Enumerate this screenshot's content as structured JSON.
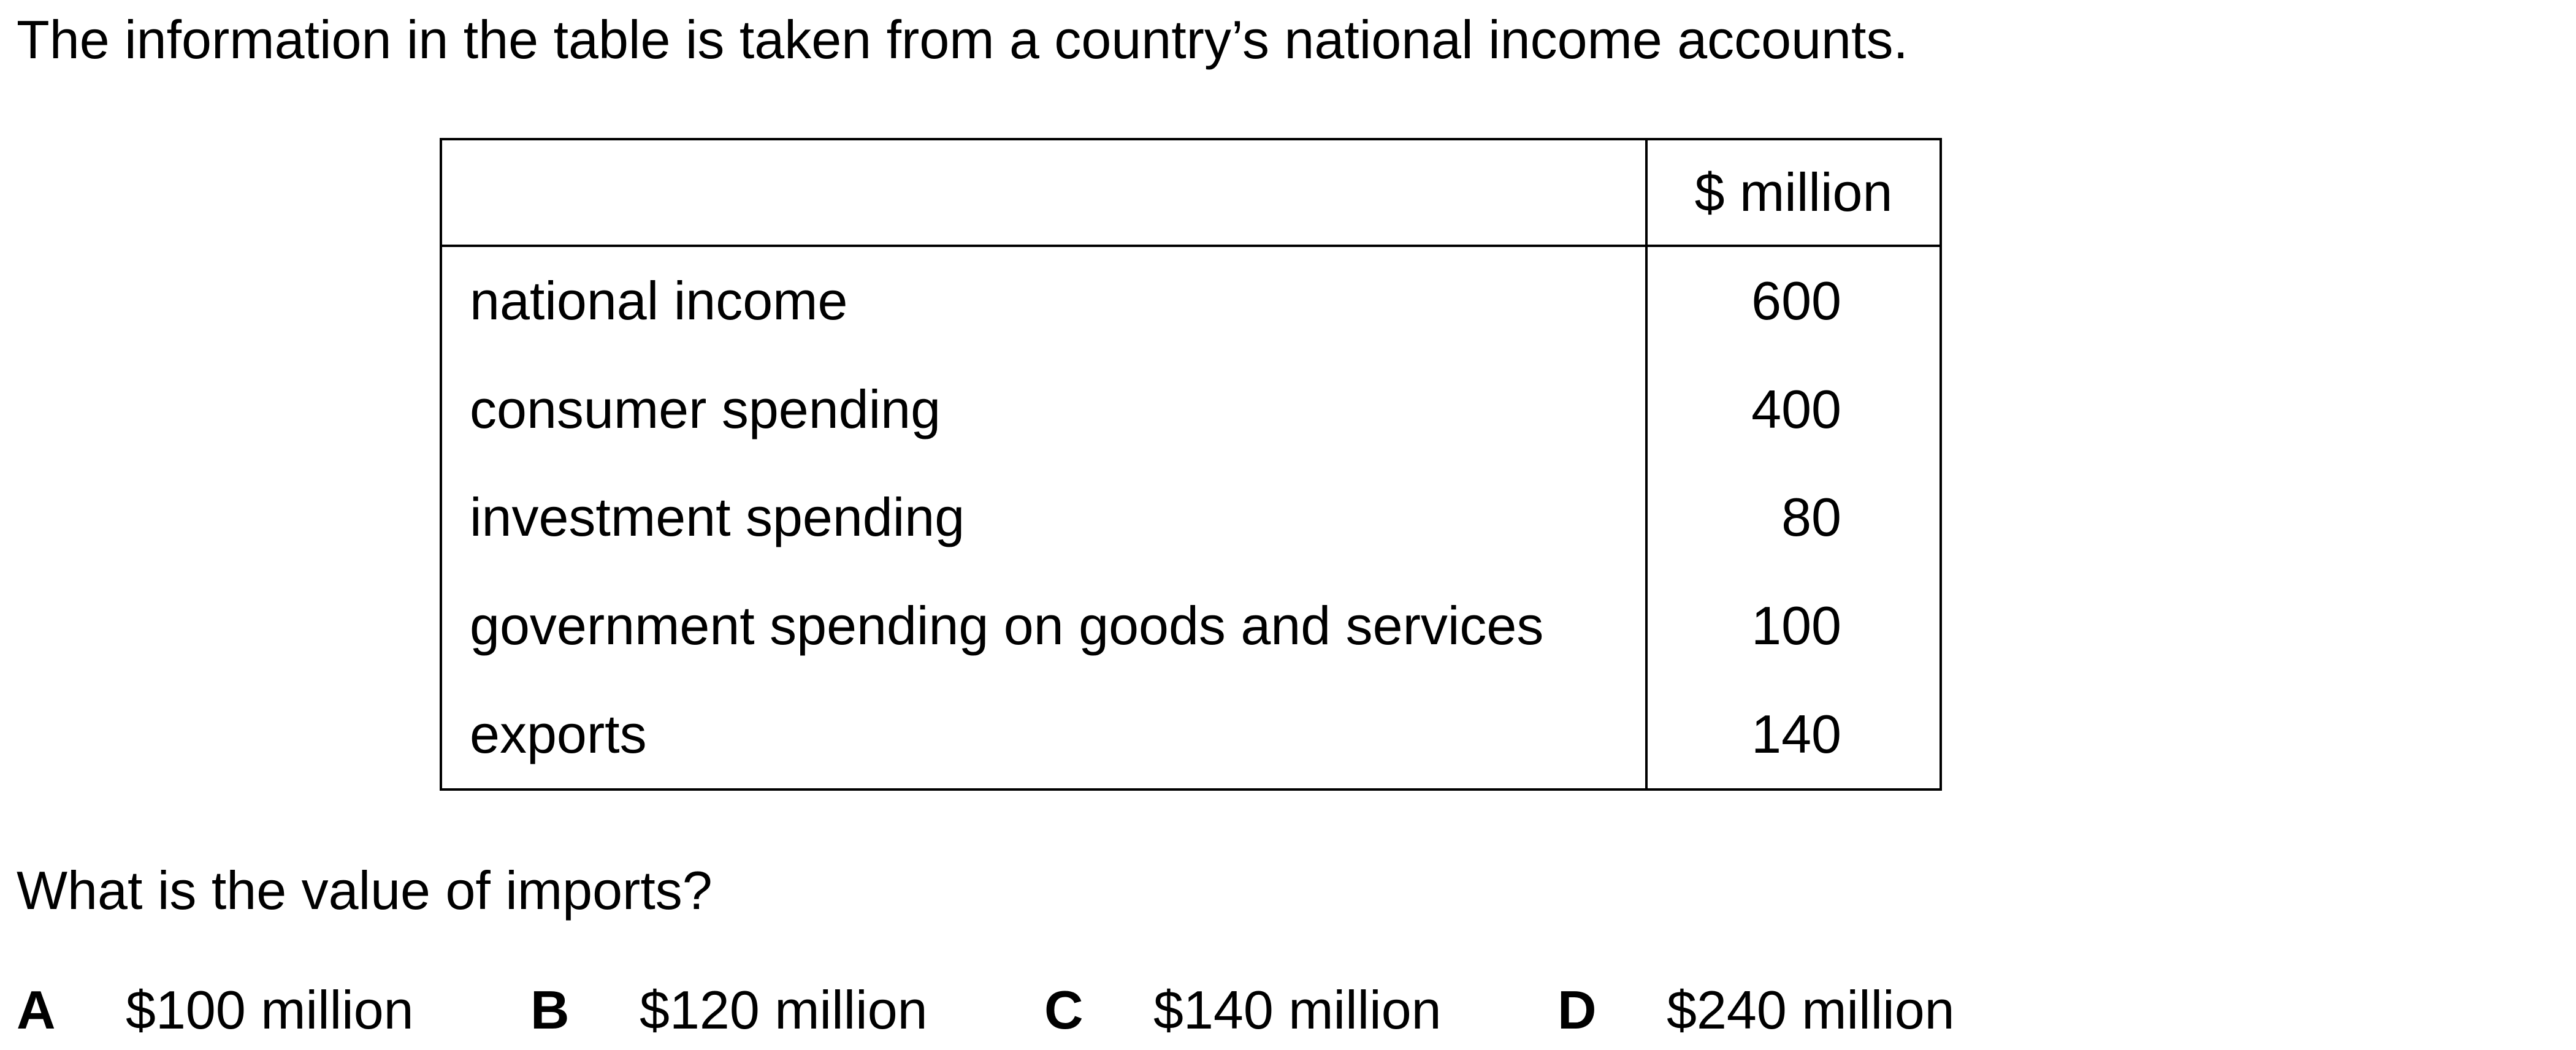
{
  "intro_text": "The information in the table is taken from a country’s national income accounts.",
  "table": {
    "header": {
      "label": "",
      "unit": "$ million"
    },
    "rows": [
      {
        "label": "national income",
        "value": "600"
      },
      {
        "label": "consumer spending",
        "value": "400"
      },
      {
        "label": "investment spending",
        "value": "80"
      },
      {
        "label": "government spending on goods and services",
        "value": "100"
      },
      {
        "label": "exports",
        "value": "140"
      }
    ]
  },
  "question": "What is the value of imports?",
  "options": [
    {
      "letter": "A",
      "text": "$100 million"
    },
    {
      "letter": "B",
      "text": "$120 million"
    },
    {
      "letter": "C",
      "text": "$140 million"
    },
    {
      "letter": "D",
      "text": "$240 million"
    }
  ]
}
